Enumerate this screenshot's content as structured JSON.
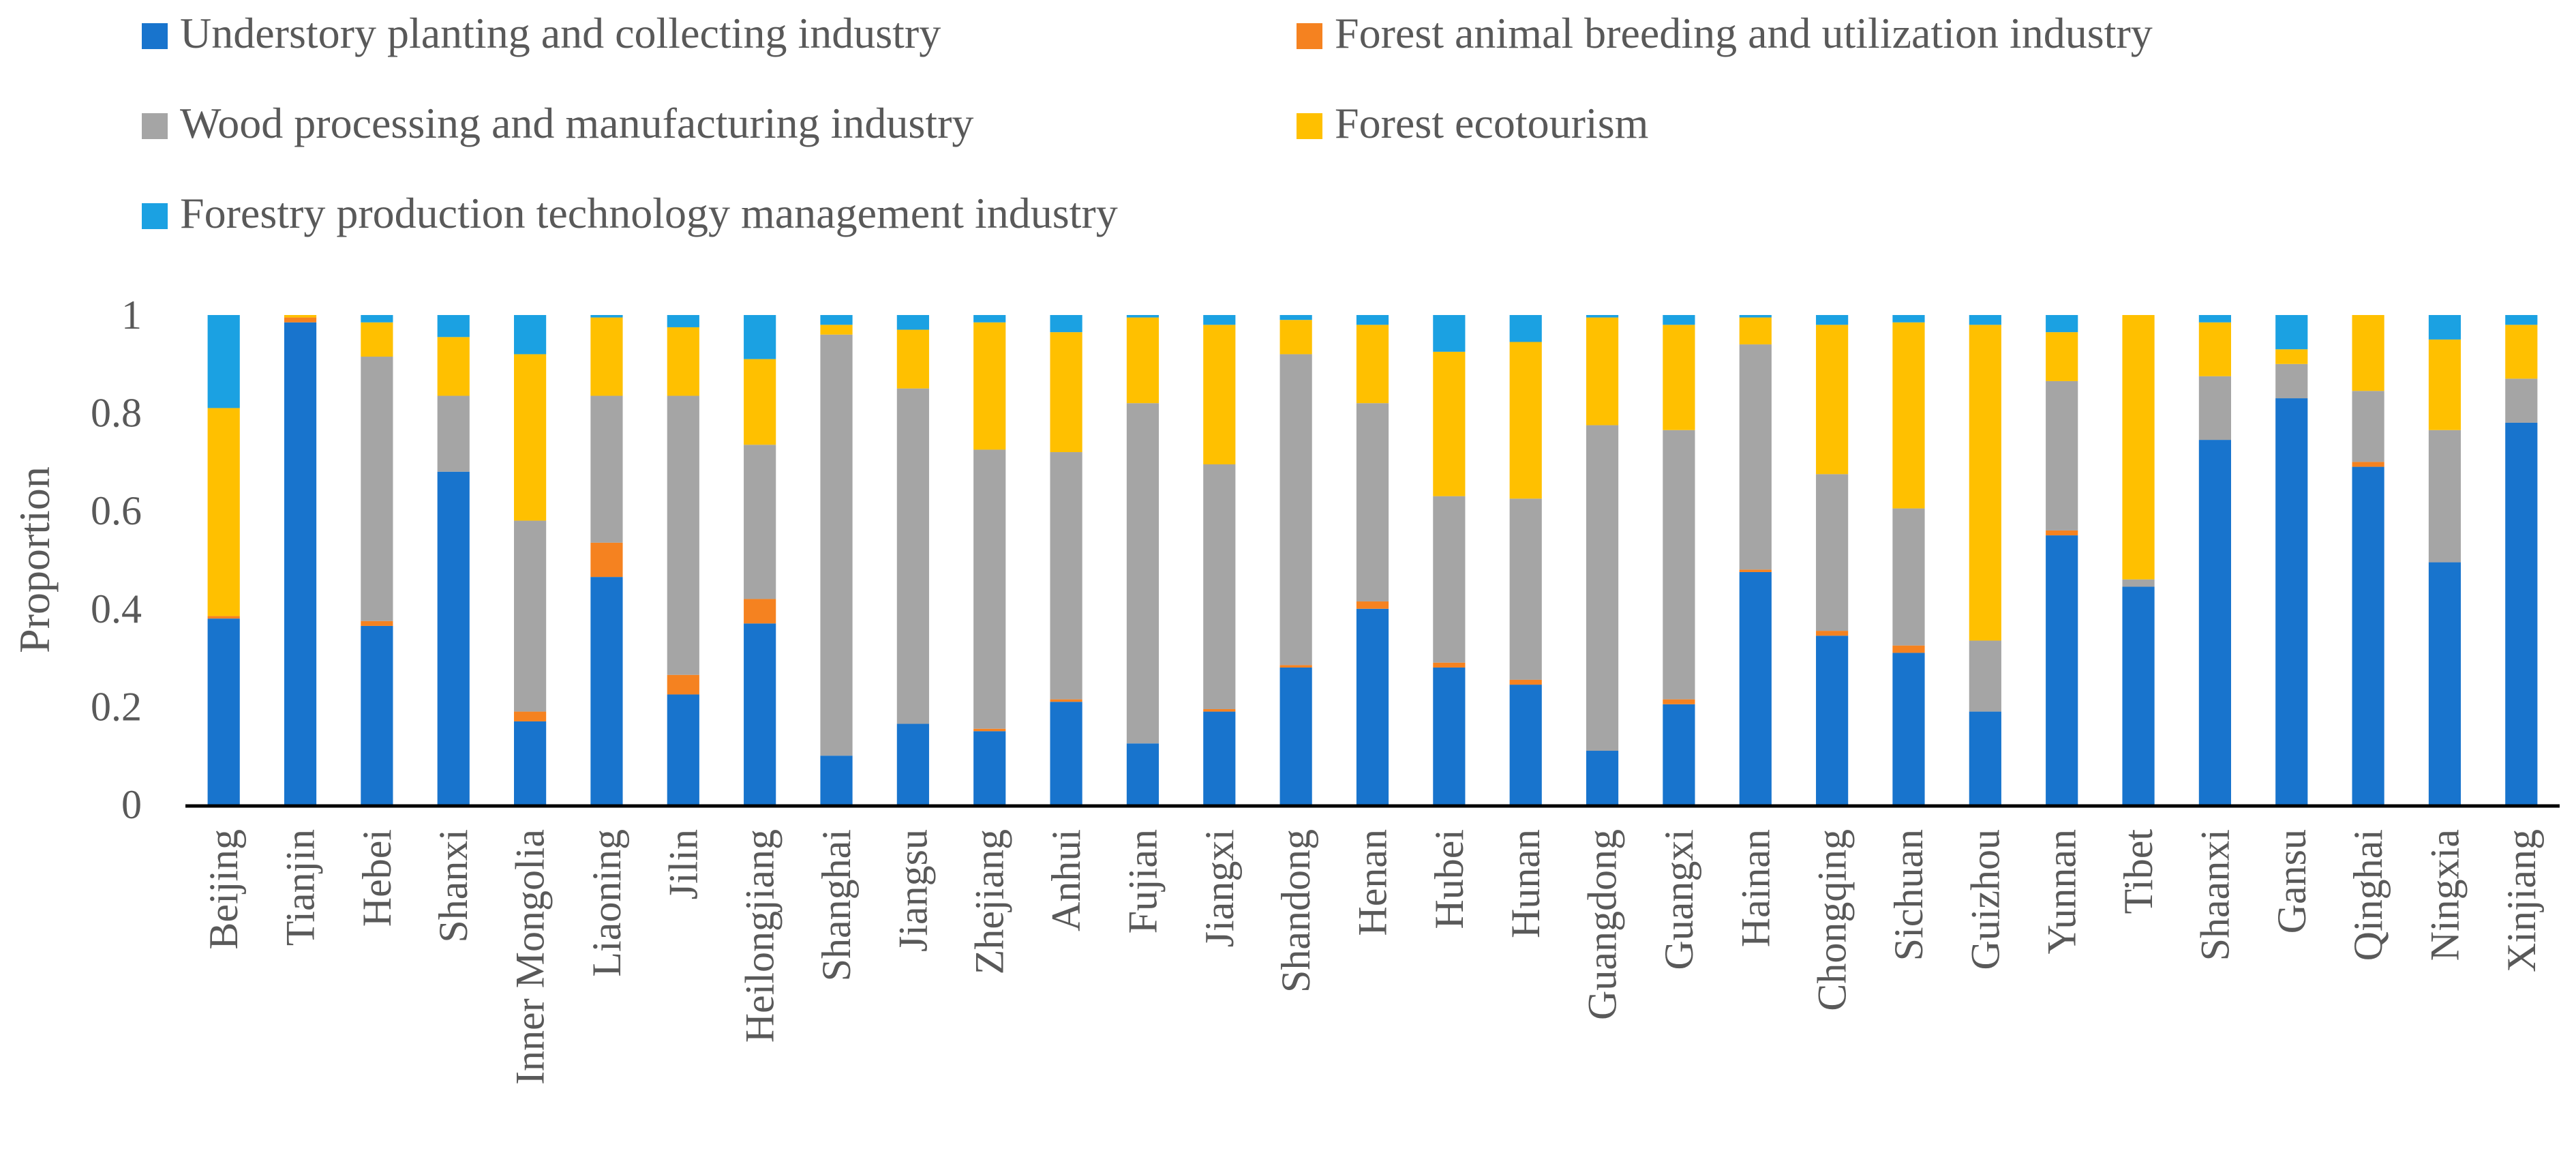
{
  "chart_data": {
    "type": "bar",
    "stacked": true,
    "title": "",
    "xlabel": "",
    "ylabel": "Proportion",
    "ylim": [
      0,
      1
    ],
    "yticks": [
      "0",
      "0.2",
      "0.4",
      "0.6",
      "0.8",
      "1"
    ],
    "legend_position": "top",
    "categories": [
      "Beijing",
      "Tianjin",
      "Hebei",
      "Shanxi",
      "Inner Mongolia",
      "Liaoning",
      "Jilin",
      "Heilongjiang",
      "Shanghai",
      "Jiangsu",
      "Zhejiang",
      "Anhui",
      "Fujian",
      "Jiangxi",
      "Shandong",
      "Henan",
      "Hubei",
      "Hunan",
      "Guangdong",
      "Guangxi",
      "Hainan",
      "Chongqing",
      "Sichuan",
      "Guizhou",
      "Yunnan",
      "Tibet",
      "Shaanxi",
      "Gansu",
      "Qinghai",
      "Ningxia",
      "Xinjiang"
    ],
    "series": [
      {
        "name": "Understory planting and collecting industry",
        "color": "#1874cd",
        "values": [
          0.38,
          0.985,
          0.365,
          0.68,
          0.17,
          0.465,
          0.225,
          0.37,
          0.1,
          0.165,
          0.15,
          0.21,
          0.125,
          0.19,
          0.28,
          0.4,
          0.28,
          0.245,
          0.11,
          0.205,
          0.475,
          0.345,
          0.31,
          0.19,
          0.55,
          0.445,
          0.745,
          0.83,
          0.69,
          0.495,
          0.78
        ]
      },
      {
        "name": "Forest animal breeding and utilization industry",
        "color": "#f58220",
        "values": [
          0.005,
          0.01,
          0.01,
          0.0,
          0.02,
          0.07,
          0.04,
          0.05,
          0.0,
          0.0,
          0.005,
          0.005,
          0.0,
          0.005,
          0.005,
          0.015,
          0.01,
          0.01,
          0.0,
          0.01,
          0.005,
          0.01,
          0.015,
          0.0,
          0.01,
          0.0,
          0.0,
          0.0,
          0.01,
          0.0,
          0.0
        ]
      },
      {
        "name": "Wood processing and manufacturing industry",
        "color": "#a5a5a5",
        "values": [
          0.0,
          0.0,
          0.54,
          0.155,
          0.39,
          0.3,
          0.57,
          0.315,
          0.86,
          0.685,
          0.57,
          0.505,
          0.695,
          0.5,
          0.635,
          0.405,
          0.34,
          0.37,
          0.665,
          0.55,
          0.46,
          0.32,
          0.28,
          0.145,
          0.305,
          0.015,
          0.13,
          0.07,
          0.145,
          0.27,
          0.09
        ]
      },
      {
        "name": "Forest ecotourism",
        "color": "#ffc000",
        "values": [
          0.425,
          0.005,
          0.07,
          0.12,
          0.34,
          0.16,
          0.14,
          0.175,
          0.02,
          0.12,
          0.26,
          0.245,
          0.175,
          0.285,
          0.07,
          0.16,
          0.295,
          0.32,
          0.22,
          0.215,
          0.055,
          0.305,
          0.38,
          0.645,
          0.1,
          0.54,
          0.11,
          0.03,
          0.155,
          0.185,
          0.11
        ]
      },
      {
        "name": "Forestry production technology management industry",
        "color": "#1ba1e2",
        "values": [
          0.19,
          0.0,
          0.015,
          0.045,
          0.08,
          0.005,
          0.025,
          0.09,
          0.02,
          0.03,
          0.015,
          0.035,
          0.005,
          0.02,
          0.01,
          0.02,
          0.075,
          0.055,
          0.005,
          0.02,
          0.005,
          0.02,
          0.015,
          0.02,
          0.035,
          0.0,
          0.015,
          0.07,
          0.0,
          0.05,
          0.02
        ]
      }
    ]
  }
}
